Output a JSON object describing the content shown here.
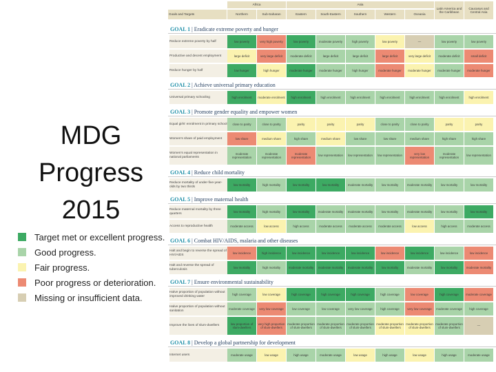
{
  "title_lines": [
    "MDG",
    "Progress",
    "2015"
  ],
  "colors": {
    "target_met": "#3daa63",
    "good": "#a9d4a9",
    "fair": "#fbf3b0",
    "poor": "#ec8a73",
    "missing": "#d7ceb3"
  },
  "legend": [
    {
      "label": "Target met or excellent progress.",
      "status": "target_met"
    },
    {
      "label": "Good progress.",
      "status": "good"
    },
    {
      "label": "Fair progress.",
      "status": "fair"
    },
    {
      "label": "Poor progress or deterioration.",
      "status": "poor"
    },
    {
      "label": "Missing or insufficient data.",
      "status": "missing"
    }
  ],
  "header": {
    "regions": [
      {
        "label": "Africa",
        "span": 2
      },
      {
        "label": "Asia",
        "span": 5
      },
      {
        "label": "Latin America and the Caribbean",
        "span": 1
      },
      {
        "label": "Caucasus and Central Asia",
        "span": 1
      }
    ],
    "goals_label": "Goals and Targets",
    "subregions": [
      "Northern",
      "Sub-Saharan",
      "Eastern",
      "South-Eastern",
      "Southern",
      "Western",
      "Oceania",
      "",
      ""
    ]
  },
  "goals": [
    {
      "num": "GOAL 1",
      "title": "Eradicate extreme poverty and hunger",
      "rows": [
        {
          "label": "Reduce extreme poverty by half",
          "cells": [
            [
              "low poverty",
              "target_met"
            ],
            [
              "very high poverty",
              "poor"
            ],
            [
              "low poverty",
              "target_met"
            ],
            [
              "moderate poverty",
              "good"
            ],
            [
              "high poverty",
              "good"
            ],
            [
              "low poverty",
              "fair"
            ],
            [
              "—",
              "missing"
            ],
            [
              "low poverty",
              "good"
            ],
            [
              "low poverty",
              "good"
            ]
          ]
        },
        {
          "label": "Productive and decent employment",
          "cells": [
            [
              "large deficit",
              "fair"
            ],
            [
              "very large deficit",
              "poor"
            ],
            [
              "moderate deficit",
              "good"
            ],
            [
              "large deficit",
              "good"
            ],
            [
              "large deficit",
              "good"
            ],
            [
              "large deficit",
              "poor"
            ],
            [
              "very large deficit",
              "fair"
            ],
            [
              "moderate deficit",
              "good"
            ],
            [
              "small deficit",
              "poor"
            ]
          ]
        },
        {
          "label": "Reduce hunger by half",
          "cells": [
            [
              "low hunger",
              "target_met"
            ],
            [
              "high hunger",
              "fair"
            ],
            [
              "moderate hunger",
              "target_met"
            ],
            [
              "moderate hunger",
              "good"
            ],
            [
              "high hunger",
              "good"
            ],
            [
              "moderate hunger",
              "poor"
            ],
            [
              "moderate hunger",
              "fair"
            ],
            [
              "moderate hunger",
              "good"
            ],
            [
              "moderate hunger",
              "poor"
            ]
          ]
        }
      ]
    },
    {
      "num": "GOAL 2",
      "title": "Achieve universal primary education",
      "rows": [
        {
          "label": "Universal primary schooling",
          "cells": [
            [
              "high enrolment",
              "target_met"
            ],
            [
              "moderate enrolment",
              "fair"
            ],
            [
              "high enrolment",
              "target_met"
            ],
            [
              "high enrolment",
              "good"
            ],
            [
              "high enrolment",
              "good"
            ],
            [
              "high enrolment",
              "good"
            ],
            [
              "high enrolment",
              "good"
            ],
            [
              "high enrolment",
              "good"
            ],
            [
              "high enrolment",
              "fair"
            ]
          ]
        }
      ]
    },
    {
      "num": "GOAL 3",
      "title": "Promote gender equality and empower women",
      "rows": [
        {
          "label": "Equal girls' enrolment in primary school",
          "cells": [
            [
              "close to parity",
              "good"
            ],
            [
              "close to parity",
              "good"
            ],
            [
              "parity",
              "fair"
            ],
            [
              "parity",
              "fair"
            ],
            [
              "parity",
              "fair"
            ],
            [
              "close to parity",
              "good"
            ],
            [
              "close to parity",
              "good"
            ],
            [
              "parity",
              "fair"
            ],
            [
              "parity",
              "fair"
            ]
          ]
        },
        {
          "label": "Women's share of paid employment",
          "cells": [
            [
              "low share",
              "poor"
            ],
            [
              "medium share",
              "fair"
            ],
            [
              "high share",
              "good"
            ],
            [
              "medium share",
              "fair"
            ],
            [
              "low share",
              "good"
            ],
            [
              "low share",
              "good"
            ],
            [
              "medium share",
              "good"
            ],
            [
              "high share",
              "good"
            ],
            [
              "high share",
              "good"
            ]
          ]
        },
        {
          "label": "Women's equal representation in national parliaments",
          "cells": [
            [
              "moderate representation",
              "good"
            ],
            [
              "moderate representation",
              "good"
            ],
            [
              "moderate representation",
              "poor"
            ],
            [
              "low representation",
              "good"
            ],
            [
              "low representation",
              "good"
            ],
            [
              "low representation",
              "good"
            ],
            [
              "very low representation",
              "poor"
            ],
            [
              "moderate representation",
              "good"
            ],
            [
              "low representation",
              "good"
            ]
          ]
        }
      ]
    },
    {
      "num": "GOAL 4",
      "title": "Reduce child mortality",
      "rows": [
        {
          "label": "Reduce mortality of under-five-year-olds by two thirds",
          "cells": [
            [
              "low mortality",
              "target_met"
            ],
            [
              "high mortality",
              "good"
            ],
            [
              "low mortality",
              "target_met"
            ],
            [
              "low mortality",
              "target_met"
            ],
            [
              "moderate mortality",
              "good"
            ],
            [
              "low mortality",
              "good"
            ],
            [
              "moderate mortality",
              "good"
            ],
            [
              "low mortality",
              "good"
            ],
            [
              "low mortality",
              "good"
            ]
          ]
        }
      ]
    },
    {
      "num": "GOAL 5",
      "title": "Improve maternal health",
      "rows": [
        {
          "label": "Reduce maternal mortality by three quarters",
          "cells": [
            [
              "low mortality",
              "target_met"
            ],
            [
              "high mortality",
              "good"
            ],
            [
              "low mortality",
              "target_met"
            ],
            [
              "moderate mortality",
              "good"
            ],
            [
              "moderate mortality",
              "good"
            ],
            [
              "low mortality",
              "good"
            ],
            [
              "moderate mortality",
              "good"
            ],
            [
              "low mortality",
              "good"
            ],
            [
              "low mortality",
              "target_met"
            ]
          ]
        },
        {
          "label": "Access to reproductive health",
          "cells": [
            [
              "moderate access",
              "good"
            ],
            [
              "low access",
              "fair"
            ],
            [
              "high access",
              "good"
            ],
            [
              "moderate access",
              "good"
            ],
            [
              "moderate access",
              "good"
            ],
            [
              "moderate access",
              "good"
            ],
            [
              "low access",
              "fair"
            ],
            [
              "high access",
              "good"
            ],
            [
              "moderate access",
              "good"
            ]
          ]
        }
      ]
    },
    {
      "num": "GOAL 6",
      "title": "Combat HIV/AIDS, malaria and other diseases",
      "rows": [
        {
          "label": "Halt and begin to reverse the spread of HIV/AIDS",
          "cells": [
            [
              "low incidence",
              "poor"
            ],
            [
              "high incidence",
              "target_met"
            ],
            [
              "low incidence",
              "target_met"
            ],
            [
              "low incidence",
              "target_met"
            ],
            [
              "low incidence",
              "target_met"
            ],
            [
              "low incidence",
              "poor"
            ],
            [
              "low incidence",
              "target_met"
            ],
            [
              "low incidence",
              "good"
            ],
            [
              "low incidence",
              "poor"
            ]
          ]
        },
        {
          "label": "Halt and reverse the spread of tuberculosis",
          "cells": [
            [
              "low mortality",
              "target_met"
            ],
            [
              "high mortality",
              "good"
            ],
            [
              "moderate mortality",
              "target_met"
            ],
            [
              "moderate mortality",
              "target_met"
            ],
            [
              "moderate mortality",
              "target_met"
            ],
            [
              "low mortality",
              "target_met"
            ],
            [
              "moderate mortality",
              "good"
            ],
            [
              "low mortality",
              "target_met"
            ],
            [
              "moderate mortality",
              "poor"
            ]
          ]
        }
      ]
    },
    {
      "num": "GOAL 7",
      "title": "Ensure environmental sustainability",
      "rows": [
        {
          "label": "Halve proportion of population without improved drinking water",
          "cells": [
            [
              "high coverage",
              "good"
            ],
            [
              "low coverage",
              "fair"
            ],
            [
              "high coverage",
              "target_met"
            ],
            [
              "high coverage",
              "target_met"
            ],
            [
              "high coverage",
              "target_met"
            ],
            [
              "high coverage",
              "good"
            ],
            [
              "low coverage",
              "poor"
            ],
            [
              "high coverage",
              "target_met"
            ],
            [
              "moderate coverage",
              "poor"
            ]
          ]
        },
        {
          "label": "Halve proportion of population without sanitation",
          "cells": [
            [
              "moderate coverage",
              "good"
            ],
            [
              "very low coverage",
              "poor"
            ],
            [
              "low coverage",
              "good"
            ],
            [
              "low coverage",
              "good"
            ],
            [
              "very low coverage",
              "good"
            ],
            [
              "high coverage",
              "good"
            ],
            [
              "very low coverage",
              "poor"
            ],
            [
              "moderate coverage",
              "good"
            ],
            [
              "high coverage",
              "good"
            ]
          ]
        },
        {
          "label": "Improve the lives of slum-dwellers",
          "cells": [
            [
              "low proportion of slum-dwellers",
              "target_met"
            ],
            [
              "very high proportion of slum-dwellers",
              "poor"
            ],
            [
              "moderate proportion of slum-dwellers",
              "good"
            ],
            [
              "moderate proportion of slum-dwellers",
              "good"
            ],
            [
              "moderate proportion of slum-dwellers",
              "good"
            ],
            [
              "moderate proportion of slum-dwellers",
              "fair"
            ],
            [
              "moderate proportion of slum-dwellers",
              "fair"
            ],
            [
              "moderate proportion of slum-dwellers",
              "good"
            ],
            [
              "—",
              "missing"
            ]
          ]
        }
      ]
    },
    {
      "num": "GOAL 8",
      "title": "Develop a global partnership for development",
      "rows": [
        {
          "label": "Internet users",
          "cells": [
            [
              "moderate usage",
              "good"
            ],
            [
              "low usage",
              "fair"
            ],
            [
              "high usage",
              "good"
            ],
            [
              "moderate usage",
              "good"
            ],
            [
              "low usage",
              "fair"
            ],
            [
              "high usage",
              "good"
            ],
            [
              "low usage",
              "fair"
            ],
            [
              "high usage",
              "good"
            ],
            [
              "moderate usage",
              "good"
            ]
          ]
        }
      ]
    }
  ]
}
